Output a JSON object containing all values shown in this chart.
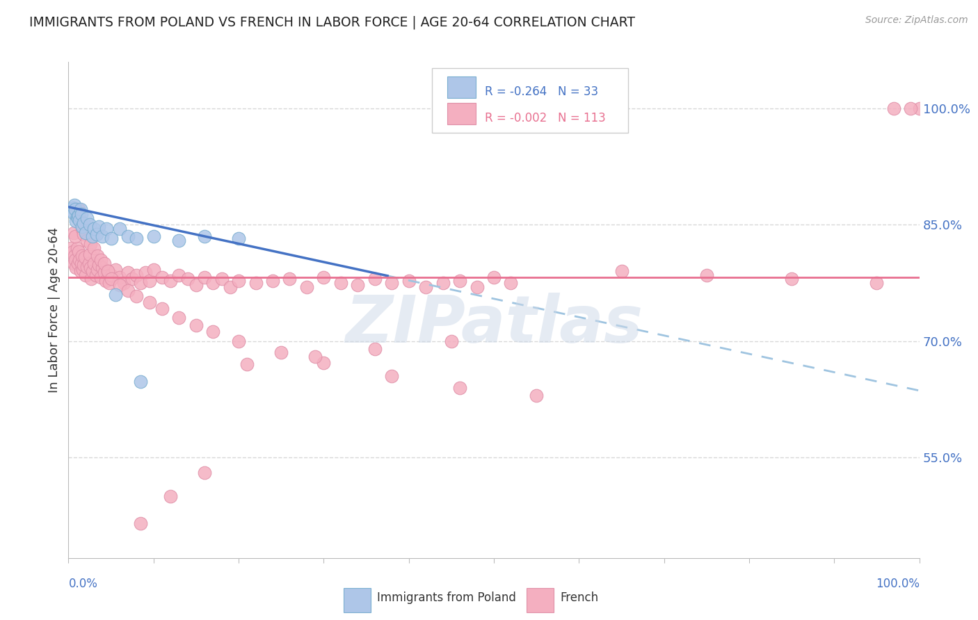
{
  "title": "IMMIGRANTS FROM POLAND VS FRENCH IN LABOR FORCE | AGE 20-64 CORRELATION CHART",
  "source": "Source: ZipAtlas.com",
  "ylabel": "In Labor Force | Age 20-64",
  "legend_label1": "Immigrants from Poland",
  "legend_label2": "French",
  "r1": "-0.264",
  "n1": "33",
  "r2": "-0.002",
  "n2": "113",
  "watermark": "ZIPatlas",
  "right_ytick_labels": [
    "55.0%",
    "70.0%",
    "85.0%",
    "100.0%"
  ],
  "right_ytick_values": [
    0.55,
    0.7,
    0.85,
    1.0
  ],
  "xlim": [
    0.0,
    1.0
  ],
  "ylim": [
    0.42,
    1.06
  ],
  "color_poland": "#aec6e8",
  "color_french": "#f4afc0",
  "color_trend_poland": "#4472c4",
  "color_trend_french": "#e87090",
  "color_dashed": "#9fc4e0",
  "background_color": "#ffffff",
  "grid_color": "#d8d8d8",
  "trend_poland_x0": 0.0,
  "trend_poland_y0": 0.873,
  "trend_poland_x1": 1.0,
  "trend_poland_y1": 0.636,
  "trend_poland_solid_end": 0.375,
  "trend_french_y": 0.782,
  "poland_x": [
    0.003,
    0.005,
    0.006,
    0.007,
    0.008,
    0.009,
    0.01,
    0.011,
    0.012,
    0.013,
    0.014,
    0.015,
    0.016,
    0.018,
    0.02,
    0.022,
    0.025,
    0.028,
    0.03,
    0.033,
    0.036,
    0.04,
    0.045,
    0.05,
    0.06,
    0.07,
    0.08,
    0.1,
    0.13,
    0.16,
    0.2,
    0.055,
    0.085
  ],
  "poland_y": [
    0.868,
    0.872,
    0.865,
    0.875,
    0.87,
    0.855,
    0.86,
    0.858,
    0.862,
    0.856,
    0.87,
    0.864,
    0.848,
    0.852,
    0.84,
    0.858,
    0.85,
    0.835,
    0.845,
    0.838,
    0.848,
    0.835,
    0.845,
    0.832,
    0.845,
    0.835,
    0.832,
    0.835,
    0.83,
    0.835,
    0.832,
    0.76,
    0.648
  ],
  "french_x": [
    0.003,
    0.005,
    0.006,
    0.007,
    0.008,
    0.009,
    0.01,
    0.011,
    0.012,
    0.013,
    0.014,
    0.015,
    0.016,
    0.017,
    0.018,
    0.019,
    0.02,
    0.022,
    0.024,
    0.025,
    0.026,
    0.027,
    0.028,
    0.03,
    0.032,
    0.034,
    0.036,
    0.038,
    0.04,
    0.042,
    0.044,
    0.046,
    0.048,
    0.05,
    0.055,
    0.06,
    0.065,
    0.07,
    0.075,
    0.08,
    0.085,
    0.09,
    0.095,
    0.1,
    0.11,
    0.12,
    0.13,
    0.14,
    0.15,
    0.16,
    0.17,
    0.18,
    0.19,
    0.2,
    0.22,
    0.24,
    0.26,
    0.28,
    0.3,
    0.32,
    0.34,
    0.36,
    0.38,
    0.4,
    0.42,
    0.44,
    0.46,
    0.48,
    0.5,
    0.52,
    0.006,
    0.008,
    0.01,
    0.012,
    0.014,
    0.016,
    0.018,
    0.022,
    0.026,
    0.03,
    0.034,
    0.038,
    0.042,
    0.046,
    0.05,
    0.06,
    0.07,
    0.08,
    0.095,
    0.11,
    0.13,
    0.15,
    0.17,
    0.2,
    0.25,
    0.3,
    0.38,
    0.46,
    0.55,
    0.65,
    0.75,
    0.85,
    0.95,
    1.0,
    0.97,
    0.99,
    0.45,
    0.36,
    0.29,
    0.21,
    0.16,
    0.12,
    0.085
  ],
  "french_y": [
    0.82,
    0.815,
    0.8,
    0.81,
    0.805,
    0.795,
    0.82,
    0.8,
    0.815,
    0.805,
    0.79,
    0.8,
    0.81,
    0.792,
    0.798,
    0.808,
    0.785,
    0.796,
    0.8,
    0.812,
    0.795,
    0.78,
    0.79,
    0.8,
    0.785,
    0.792,
    0.798,
    0.782,
    0.795,
    0.788,
    0.778,
    0.79,
    0.775,
    0.785,
    0.792,
    0.782,
    0.775,
    0.788,
    0.78,
    0.785,
    0.775,
    0.788,
    0.778,
    0.792,
    0.782,
    0.778,
    0.785,
    0.78,
    0.772,
    0.782,
    0.775,
    0.78,
    0.77,
    0.778,
    0.775,
    0.778,
    0.78,
    0.77,
    0.782,
    0.775,
    0.772,
    0.78,
    0.775,
    0.778,
    0.77,
    0.775,
    0.778,
    0.77,
    0.782,
    0.775,
    0.84,
    0.835,
    0.86,
    0.87,
    0.852,
    0.845,
    0.838,
    0.83,
    0.825,
    0.82,
    0.81,
    0.805,
    0.8,
    0.79,
    0.78,
    0.772,
    0.765,
    0.758,
    0.75,
    0.742,
    0.73,
    0.72,
    0.712,
    0.7,
    0.685,
    0.672,
    0.655,
    0.64,
    0.63,
    0.79,
    0.785,
    0.78,
    0.775,
    1.0,
    1.0,
    1.0,
    0.7,
    0.69,
    0.68,
    0.67,
    0.53,
    0.5,
    0.465
  ]
}
